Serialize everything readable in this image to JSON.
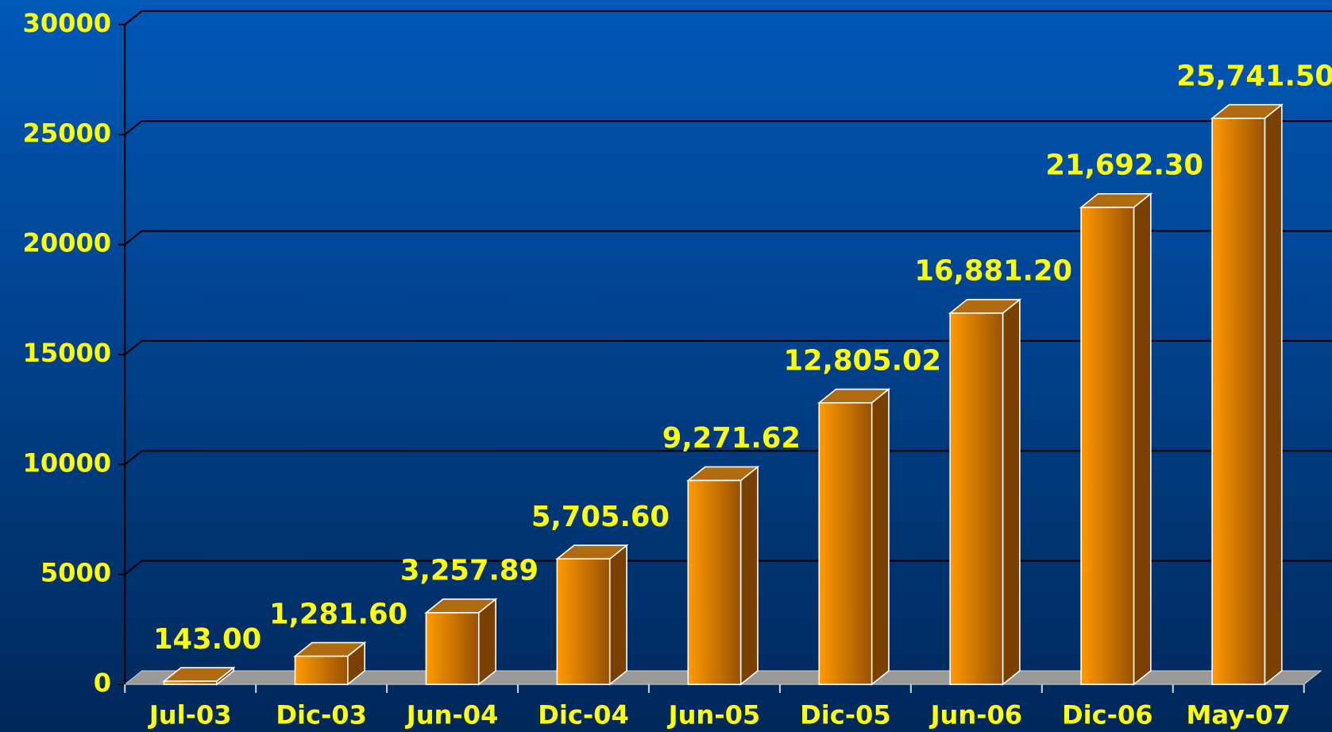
{
  "chart_data": {
    "type": "bar3d",
    "categories": [
      "Jul-03",
      "Dic-03",
      "Jun-04",
      "Dic-04",
      "Jun-05",
      "Dic-05",
      "Jun-06",
      "Dic-06",
      "May-07"
    ],
    "values": [
      143.0,
      1281.6,
      3257.89,
      5705.6,
      9271.62,
      12805.02,
      16881.2,
      21692.3,
      25741.5
    ],
    "value_labels": [
      "143.00",
      "1,281.60",
      "3,257.89",
      "5,705.60",
      "9,271.62",
      "12,805.02",
      "16,881.20",
      "21,692.30",
      "25,741.50"
    ],
    "color": "#ff9900",
    "ylim": [
      0,
      30000
    ],
    "yticks": [
      0,
      5000,
      10000,
      15000,
      20000,
      25000,
      30000
    ],
    "grid": true
  }
}
